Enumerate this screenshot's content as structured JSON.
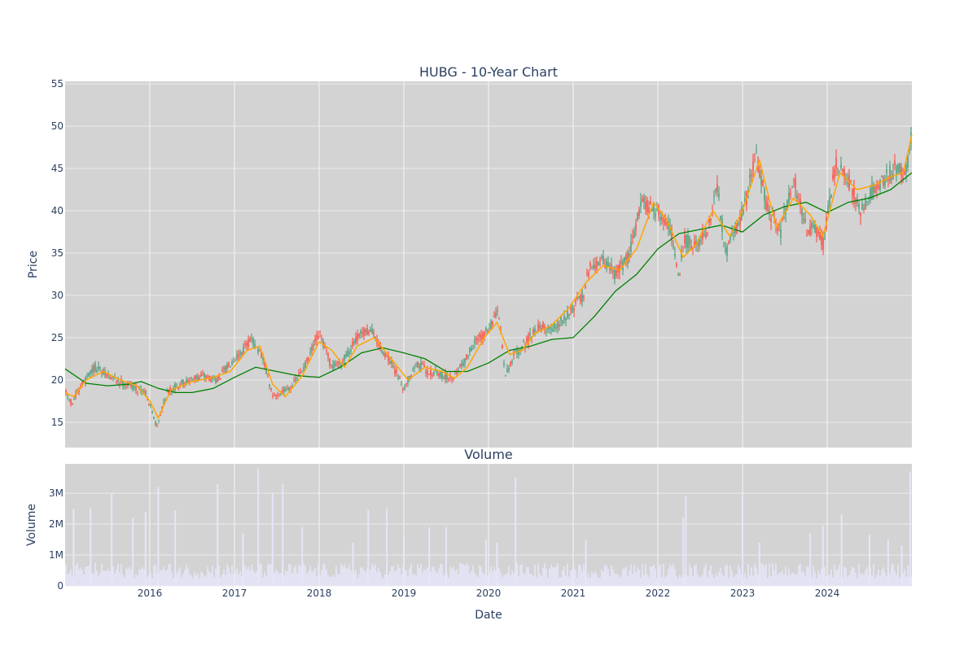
{
  "colors": {
    "plot_bg": "#d3d3d3",
    "grid": "#ebebeb",
    "text": "#2a3f5f",
    "up": "#3d9970",
    "down": "#ff4136",
    "ma_short": "#ffa500",
    "ma_long": "#008000",
    "volume_bar": "#e6e6fa"
  },
  "chart_data": [
    {
      "type": "candlestick",
      "title": "HUBG - 10-Year Chart",
      "xlabel": "",
      "ylabel": "Price",
      "ylim": [
        12,
        55.3
      ],
      "yticks": [
        15,
        20,
        25,
        30,
        35,
        40,
        45,
        50,
        55
      ],
      "xlim": [
        2015.0,
        2025.0
      ],
      "grid": true,
      "legend": "none",
      "price_anchors": {
        "x": [
          2015.0,
          2015.08,
          2015.2,
          2015.35,
          2015.5,
          2015.65,
          2015.8,
          2015.95,
          2016.08,
          2016.2,
          2016.35,
          2016.5,
          2016.65,
          2016.8,
          2016.95,
          2017.1,
          2017.2,
          2017.35,
          2017.45,
          2017.55,
          2017.7,
          2017.85,
          2018.0,
          2018.15,
          2018.3,
          2018.45,
          2018.6,
          2018.75,
          2018.9,
          2019.0,
          2019.15,
          2019.3,
          2019.45,
          2019.55,
          2019.7,
          2019.85,
          2020.0,
          2020.12,
          2020.2,
          2020.3,
          2020.45,
          2020.6,
          2020.75,
          2020.9,
          2021.0,
          2021.12,
          2021.2,
          2021.35,
          2021.5,
          2021.65,
          2021.8,
          2021.9,
          2022.0,
          2022.15,
          2022.25,
          2022.3,
          2022.45,
          2022.6,
          2022.7,
          2022.8,
          2022.95,
          2023.05,
          2023.15,
          2023.3,
          2023.45,
          2023.6,
          2023.75,
          2023.88,
          2023.95,
          2024.1,
          2024.25,
          2024.4,
          2024.55,
          2024.7,
          2024.85,
          2024.92,
          2025.0
        ],
        "y": [
          18.5,
          17.2,
          19.5,
          21.5,
          20.5,
          19.8,
          19.2,
          18.6,
          14.5,
          18.5,
          19.5,
          20.0,
          20.5,
          20.0,
          22.0,
          23.5,
          25.0,
          22.0,
          18.0,
          18.5,
          19.5,
          22.0,
          25.5,
          21.5,
          22.5,
          25.0,
          26.0,
          23.5,
          21.0,
          19.0,
          22.0,
          21.0,
          20.5,
          20.2,
          22.0,
          24.5,
          26.0,
          28.0,
          20.5,
          23.0,
          24.5,
          26.5,
          25.8,
          27.5,
          28.5,
          30.0,
          33.5,
          34.0,
          32.5,
          34.5,
          41.0,
          40.5,
          40.0,
          38.0,
          31.5,
          36.5,
          36.0,
          38.0,
          43.0,
          35.0,
          38.5,
          41.5,
          47.0,
          40.0,
          37.5,
          44.0,
          38.0,
          37.5,
          36.0,
          45.5,
          43.5,
          40.0,
          42.5,
          44.0,
          45.5,
          44.0,
          49.0
        ]
      },
      "moving_average_short": {
        "x": [
          2015.0,
          2015.1,
          2015.25,
          2015.45,
          2015.65,
          2015.85,
          2016.0,
          2016.1,
          2016.25,
          2016.5,
          2016.75,
          2016.95,
          2017.15,
          2017.3,
          2017.45,
          2017.6,
          2017.8,
          2018.0,
          2018.15,
          2018.3,
          2018.45,
          2018.65,
          2018.85,
          2019.05,
          2019.25,
          2019.45,
          2019.6,
          2019.75,
          2019.95,
          2020.1,
          2020.25,
          2020.4,
          2020.55,
          2020.75,
          2020.95,
          2021.15,
          2021.35,
          2021.55,
          2021.75,
          2021.95,
          2022.1,
          2022.3,
          2022.45,
          2022.65,
          2022.85,
          2023.0,
          2023.2,
          2023.4,
          2023.6,
          2023.8,
          2023.95,
          2024.15,
          2024.35,
          2024.55,
          2024.75,
          2024.9,
          2025.0
        ],
        "y": [
          18.5,
          18.0,
          20.0,
          21.0,
          20.0,
          19.3,
          17.5,
          15.5,
          18.8,
          19.8,
          20.3,
          21.0,
          23.5,
          24.0,
          19.5,
          18.0,
          20.5,
          24.5,
          23.5,
          21.5,
          24.0,
          25.0,
          22.5,
          20.0,
          21.5,
          21.0,
          20.2,
          21.5,
          25.0,
          26.8,
          23.0,
          23.5,
          25.5,
          26.5,
          28.5,
          31.5,
          33.5,
          33.0,
          35.5,
          41.0,
          39.0,
          34.5,
          36.0,
          40.0,
          37.0,
          40.0,
          46.0,
          38.0,
          41.5,
          39.5,
          37.0,
          44.5,
          42.5,
          43.0,
          44.0,
          44.5,
          49.0
        ]
      },
      "moving_average_long": {
        "x": [
          2015.0,
          2015.25,
          2015.5,
          2015.75,
          2015.9,
          2016.1,
          2016.3,
          2016.5,
          2016.75,
          2017.0,
          2017.25,
          2017.5,
          2017.75,
          2018.0,
          2018.25,
          2018.5,
          2018.75,
          2019.0,
          2019.25,
          2019.5,
          2019.75,
          2020.0,
          2020.25,
          2020.5,
          2020.75,
          2021.0,
          2021.25,
          2021.5,
          2021.75,
          2022.0,
          2022.25,
          2022.5,
          2022.75,
          2023.0,
          2023.25,
          2023.5,
          2023.75,
          2024.0,
          2024.25,
          2024.5,
          2024.75,
          2025.0
        ],
        "y": [
          21.3,
          19.6,
          19.3,
          19.5,
          19.8,
          19.0,
          18.5,
          18.5,
          19.0,
          20.3,
          21.5,
          21.0,
          20.5,
          20.3,
          21.5,
          23.2,
          23.8,
          23.2,
          22.5,
          21.0,
          21.0,
          22.0,
          23.5,
          24.0,
          24.8,
          25.0,
          27.5,
          30.5,
          32.5,
          35.5,
          37.3,
          37.8,
          38.3,
          37.5,
          39.5,
          40.5,
          41.0,
          39.8,
          41.0,
          41.5,
          42.5,
          44.5
        ]
      }
    },
    {
      "type": "bar",
      "title": "Volume",
      "xlabel": "Date",
      "ylabel": "Volume",
      "ylim": [
        0,
        3950000
      ],
      "yticks": [
        0,
        1000000,
        2000000,
        3000000
      ],
      "ytick_labels": [
        "0",
        "1M",
        "2M",
        "3M"
      ],
      "xticks": [
        2016,
        2017,
        2018,
        2019,
        2020,
        2021,
        2022,
        2023,
        2024
      ],
      "xtick_labels": [
        "2016",
        "2017",
        "2018",
        "2019",
        "2020",
        "2021",
        "2022",
        "2023",
        "2024"
      ],
      "grid": true,
      "baseline_volume": 550000,
      "volume_spikes": {
        "x": [
          2015.1,
          2015.3,
          2015.55,
          2015.8,
          2015.95,
          2016.1,
          2016.3,
          2016.8,
          2017.1,
          2017.28,
          2017.45,
          2017.57,
          2017.8,
          2018.4,
          2018.58,
          2018.8,
          2019.0,
          2019.3,
          2019.5,
          2019.97,
          2020.1,
          2020.32,
          2021.15,
          2022.3,
          2022.33,
          2023.0,
          2023.2,
          2023.8,
          2023.95,
          2024.17,
          2024.5,
          2024.72,
          2024.88,
          2024.98
        ],
        "y": [
          2500000,
          2500000,
          3000000,
          2200000,
          2400000,
          3200000,
          2450000,
          3300000,
          1700000,
          3800000,
          3000000,
          3300000,
          1900000,
          1400000,
          2450000,
          2500000,
          1600000,
          1900000,
          1900000,
          1500000,
          1400000,
          3500000,
          1500000,
          2200000,
          2900000,
          2900000,
          1400000,
          1700000,
          1950000,
          2300000,
          1650000,
          1500000,
          1300000,
          3700000
        ]
      }
    }
  ]
}
